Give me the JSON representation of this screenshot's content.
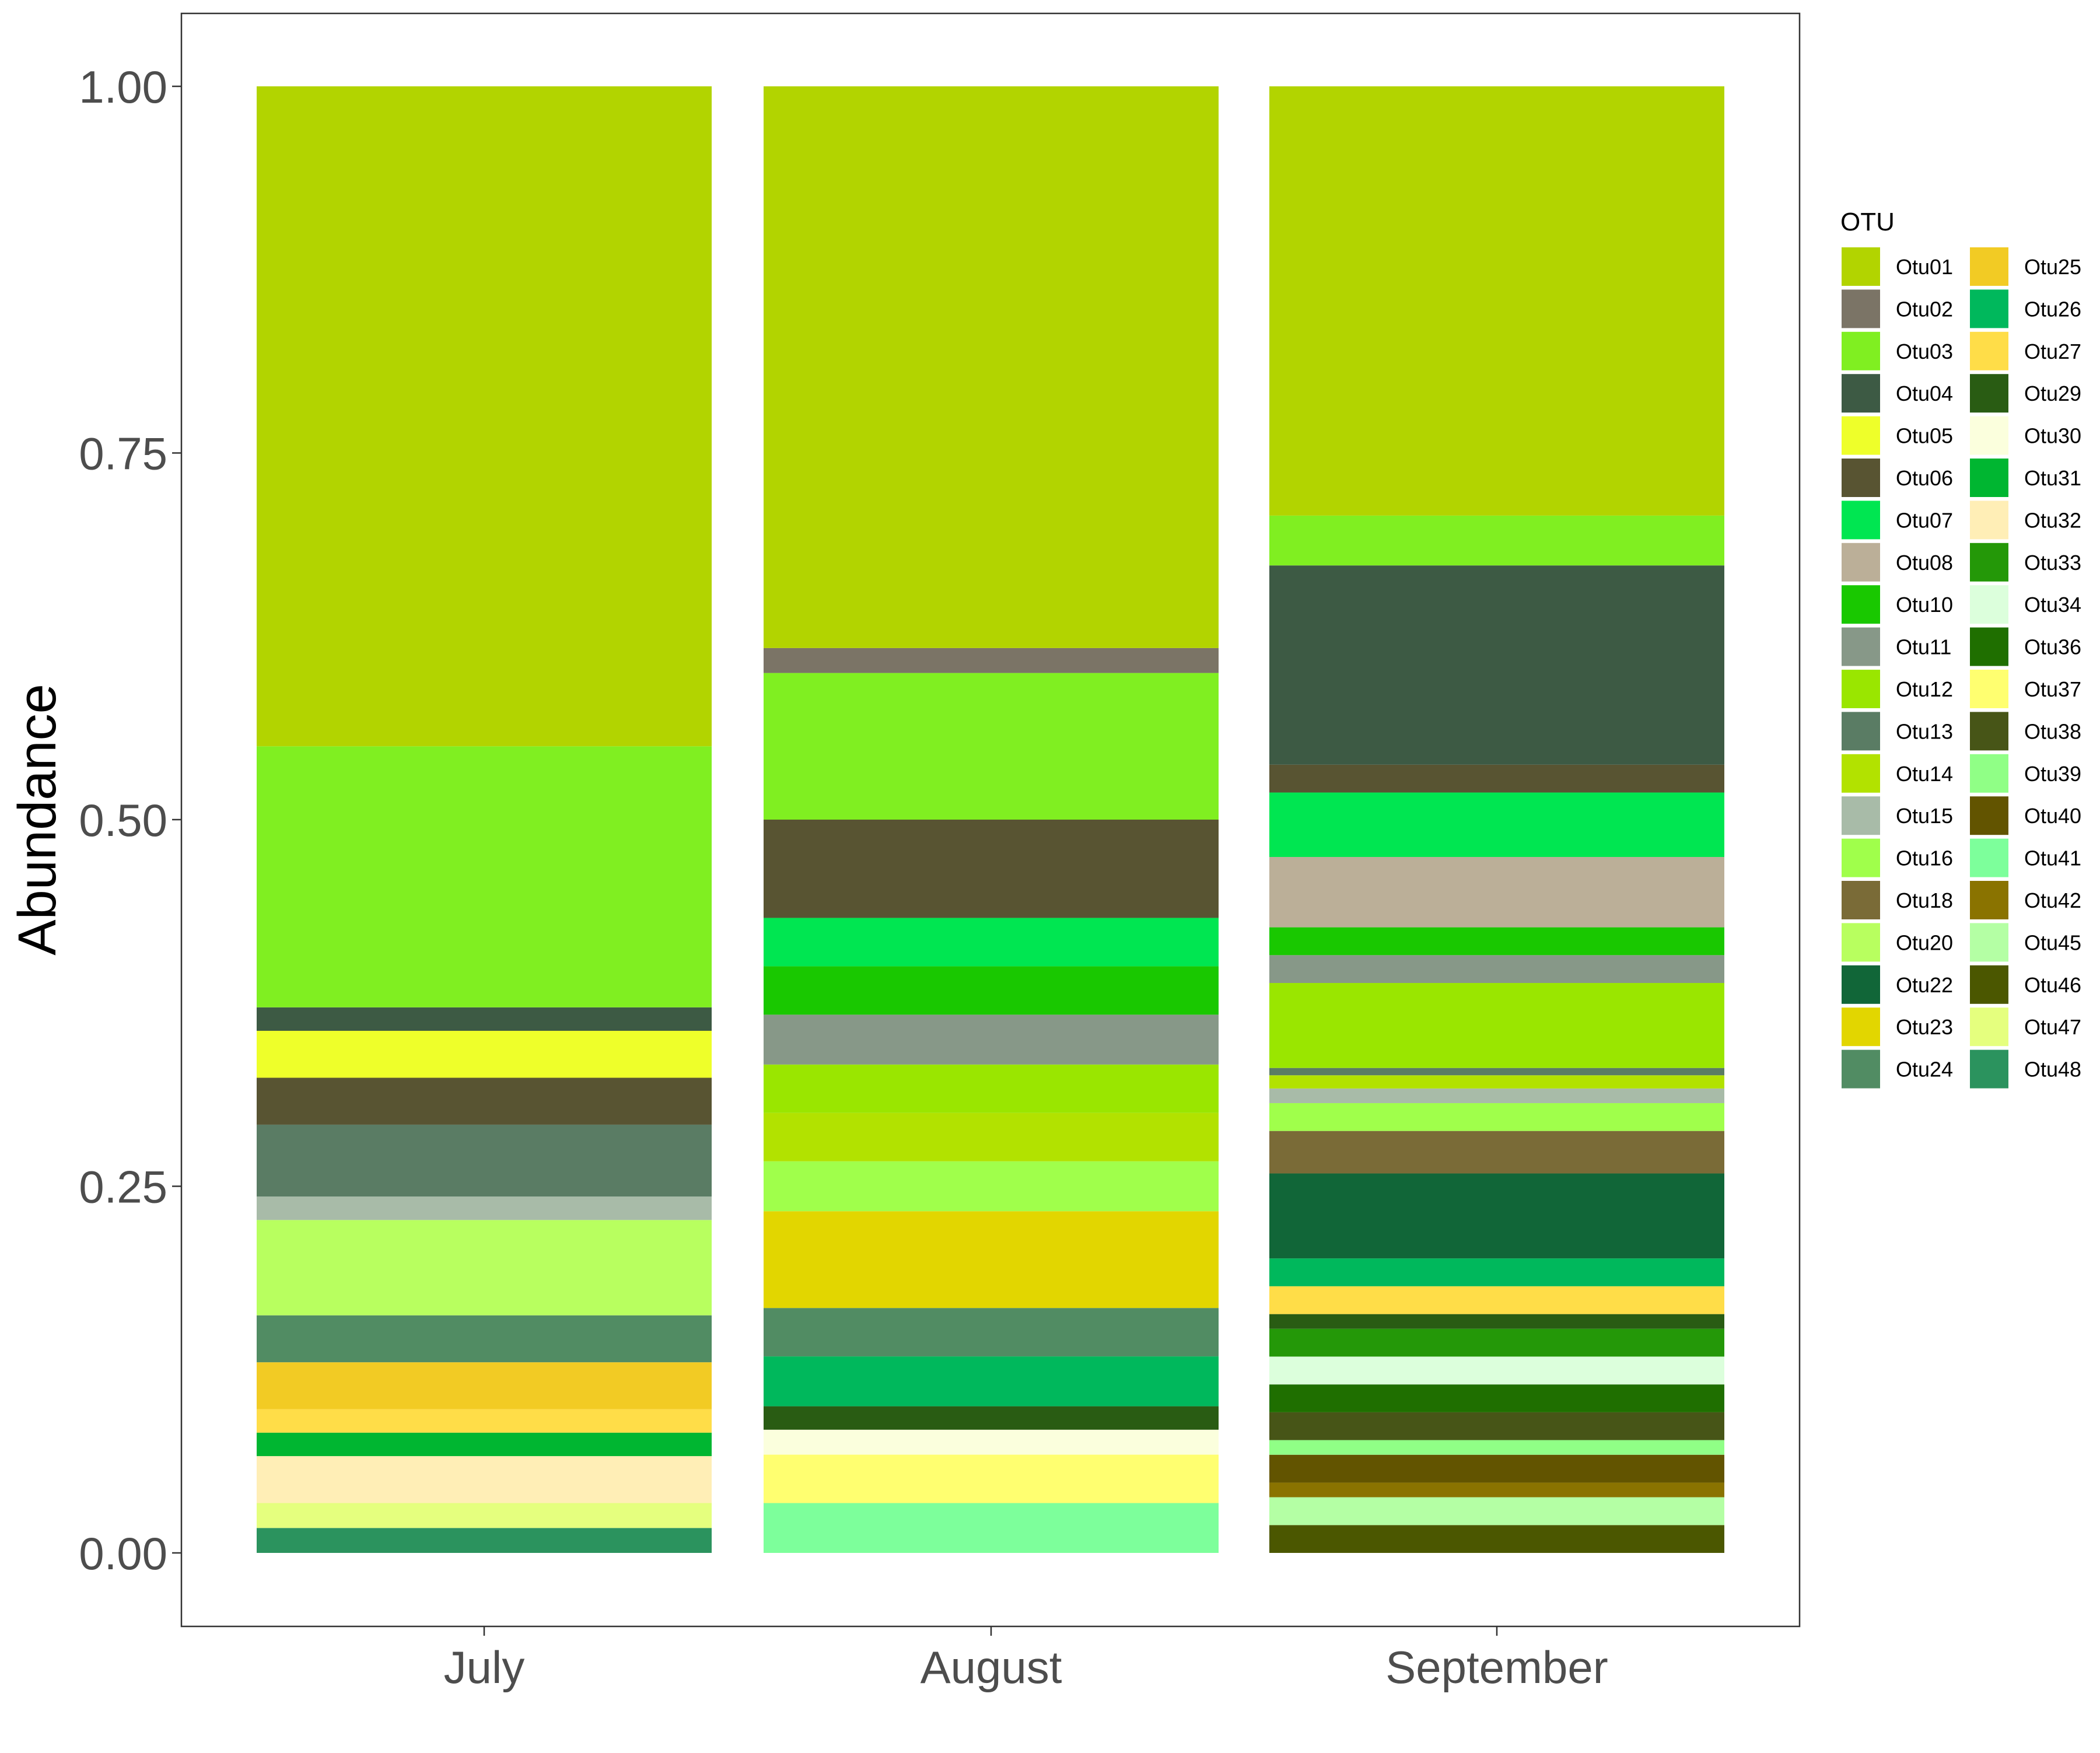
{
  "chart_data": {
    "type": "bar",
    "stacked": true,
    "categories": [
      "July",
      "August",
      "September"
    ],
    "ylabel": "Abundance",
    "xlabel": "",
    "ylim": [
      0,
      1
    ],
    "yticks": [
      "0.00",
      "0.25",
      "0.50",
      "0.75",
      "1.00"
    ],
    "grid": false,
    "legend": {
      "title": "OTU",
      "position": "right",
      "columns": 2
    },
    "otus": [
      {
        "name": "Otu01",
        "color": "#b2d400"
      },
      {
        "name": "Otu02",
        "color": "#7b7466"
      },
      {
        "name": "Otu03",
        "color": "#80ef21"
      },
      {
        "name": "Otu04",
        "color": "#3d5a44"
      },
      {
        "name": "Otu05",
        "color": "#eeff2a"
      },
      {
        "name": "Otu06",
        "color": "#585432"
      },
      {
        "name": "Otu07",
        "color": "#00e651"
      },
      {
        "name": "Otu08",
        "color": "#bbaf98"
      },
      {
        "name": "Otu10",
        "color": "#19c800"
      },
      {
        "name": "Otu11",
        "color": "#879888"
      },
      {
        "name": "Otu12",
        "color": "#9ae600"
      },
      {
        "name": "Otu13",
        "color": "#5a7c64"
      },
      {
        "name": "Otu14",
        "color": "#b2e200"
      },
      {
        "name": "Otu15",
        "color": "#a8bba8"
      },
      {
        "name": "Otu16",
        "color": "#a0ff4b"
      },
      {
        "name": "Otu18",
        "color": "#7a6b37"
      },
      {
        "name": "Otu20",
        "color": "#b8ff5f"
      },
      {
        "name": "Otu22",
        "color": "#116638"
      },
      {
        "name": "Otu23",
        "color": "#e2d600"
      },
      {
        "name": "Otu24",
        "color": "#518c63"
      },
      {
        "name": "Otu25",
        "color": "#f2cb24"
      },
      {
        "name": "Otu26",
        "color": "#00b85c"
      },
      {
        "name": "Otu27",
        "color": "#ffdd48"
      },
      {
        "name": "Otu29",
        "color": "#295c13"
      },
      {
        "name": "Otu30",
        "color": "#fbffdd"
      },
      {
        "name": "Otu31",
        "color": "#00b631"
      },
      {
        "name": "Otu32",
        "color": "#ffeeb6"
      },
      {
        "name": "Otu33",
        "color": "#249808"
      },
      {
        "name": "Otu34",
        "color": "#dcffdc"
      },
      {
        "name": "Otu36",
        "color": "#1f6f00"
      },
      {
        "name": "Otu37",
        "color": "#ffff70"
      },
      {
        "name": "Otu38",
        "color": "#475517"
      },
      {
        "name": "Otu39",
        "color": "#90ff86"
      },
      {
        "name": "Otu40",
        "color": "#625400"
      },
      {
        "name": "Otu41",
        "color": "#7dff9b"
      },
      {
        "name": "Otu42",
        "color": "#8a7300"
      },
      {
        "name": "Otu45",
        "color": "#b4ffa4"
      },
      {
        "name": "Otu46",
        "color": "#4b5700"
      },
      {
        "name": "Otu47",
        "color": "#e5ff7e"
      },
      {
        "name": "Otu48",
        "color": "#2b935e"
      }
    ],
    "series": [
      {
        "name": "Otu01",
        "values": [
          0.45,
          0.383,
          0.293
        ]
      },
      {
        "name": "Otu02",
        "values": [
          0.0,
          0.017,
          0.0
        ]
      },
      {
        "name": "Otu03",
        "values": [
          0.178,
          0.1,
          0.034
        ]
      },
      {
        "name": "Otu04",
        "values": [
          0.016,
          0.0,
          0.136
        ]
      },
      {
        "name": "Otu05",
        "values": [
          0.032,
          0.0,
          0.0
        ]
      },
      {
        "name": "Otu06",
        "values": [
          0.032,
          0.067,
          0.019
        ]
      },
      {
        "name": "Otu07",
        "values": [
          0.0,
          0.033,
          0.044
        ]
      },
      {
        "name": "Otu08",
        "values": [
          0.0,
          0.0,
          0.048
        ]
      },
      {
        "name": "Otu10",
        "values": [
          0.0,
          0.033,
          0.019
        ]
      },
      {
        "name": "Otu11",
        "values": [
          0.0,
          0.034,
          0.019
        ]
      },
      {
        "name": "Otu12",
        "values": [
          0.0,
          0.033,
          0.058
        ]
      },
      {
        "name": "Otu13",
        "values": [
          0.049,
          0.0,
          0.005
        ]
      },
      {
        "name": "Otu14",
        "values": [
          0.0,
          0.033,
          0.009
        ]
      },
      {
        "name": "Otu15",
        "values": [
          0.016,
          0.0,
          0.01
        ]
      },
      {
        "name": "Otu16",
        "values": [
          0.0,
          0.034,
          0.019
        ]
      },
      {
        "name": "Otu18",
        "values": [
          0.0,
          0.0,
          0.029
        ]
      },
      {
        "name": "Otu20",
        "values": [
          0.065,
          0.0,
          0.0
        ]
      },
      {
        "name": "Otu22",
        "values": [
          0.0,
          0.0,
          0.058
        ]
      },
      {
        "name": "Otu23",
        "values": [
          0.0,
          0.066,
          0.0
        ]
      },
      {
        "name": "Otu24",
        "values": [
          0.032,
          0.033,
          0.0
        ]
      },
      {
        "name": "Otu25",
        "values": [
          0.032,
          0.0,
          0.0
        ]
      },
      {
        "name": "Otu26",
        "values": [
          0.0,
          0.034,
          0.019
        ]
      },
      {
        "name": "Otu27",
        "values": [
          0.016,
          0.0,
          0.019
        ]
      },
      {
        "name": "Otu29",
        "values": [
          0.0,
          0.016,
          0.01
        ]
      },
      {
        "name": "Otu30",
        "values": [
          0.0,
          0.017,
          0.0
        ]
      },
      {
        "name": "Otu31",
        "values": [
          0.016,
          0.0,
          0.0
        ]
      },
      {
        "name": "Otu32",
        "values": [
          0.032,
          0.0,
          0.0
        ]
      },
      {
        "name": "Otu33",
        "values": [
          0.0,
          0.0,
          0.019
        ]
      },
      {
        "name": "Otu34",
        "values": [
          0.0,
          0.0,
          0.019
        ]
      },
      {
        "name": "Otu36",
        "values": [
          0.0,
          0.0,
          0.019
        ]
      },
      {
        "name": "Otu37",
        "values": [
          0.0,
          0.033,
          0.0
        ]
      },
      {
        "name": "Otu38",
        "values": [
          0.0,
          0.0,
          0.019
        ]
      },
      {
        "name": "Otu39",
        "values": [
          0.0,
          0.0,
          0.01
        ]
      },
      {
        "name": "Otu40",
        "values": [
          0.0,
          0.0,
          0.019
        ]
      },
      {
        "name": "Otu41",
        "values": [
          0.0,
          0.034,
          0.0
        ]
      },
      {
        "name": "Otu42",
        "values": [
          0.0,
          0.0,
          0.01
        ]
      },
      {
        "name": "Otu45",
        "values": [
          0.0,
          0.0,
          0.019
        ]
      },
      {
        "name": "Otu46",
        "values": [
          0.0,
          0.0,
          0.019
        ]
      },
      {
        "name": "Otu47",
        "values": [
          0.017,
          0.0,
          0.0
        ]
      },
      {
        "name": "Otu48",
        "values": [
          0.017,
          0.0,
          0.0
        ]
      }
    ]
  }
}
